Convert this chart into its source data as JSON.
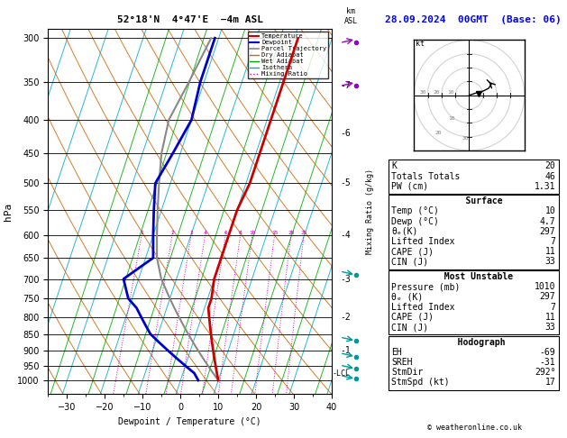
{
  "title_left": "52°18'N  4°47'E  −4m ASL",
  "title_right": "28.09.2024  00GMT  (Base: 06)",
  "xlabel": "Dewpoint / Temperature (°C)",
  "ylabel_left": "hPa",
  "bg_color": "#ffffff",
  "temp_profile": {
    "pressure": [
      1000,
      975,
      950,
      925,
      900,
      875,
      850,
      825,
      800,
      775,
      750,
      700,
      650,
      600,
      550,
      500,
      450,
      400,
      350,
      300
    ],
    "temp": [
      10,
      9,
      8,
      7,
      6,
      5,
      4,
      3,
      2,
      1,
      1,
      0,
      0,
      0,
      0,
      1,
      1,
      1,
      1,
      1
    ]
  },
  "dewp_profile": {
    "pressure": [
      1000,
      975,
      950,
      925,
      900,
      875,
      850,
      825,
      800,
      775,
      750,
      700,
      650,
      600,
      550,
      500,
      450,
      400,
      350,
      300
    ],
    "dewp": [
      4.7,
      3,
      0,
      -3,
      -6,
      -9,
      -12,
      -14,
      -16,
      -18,
      -21,
      -24,
      -18,
      -20,
      -22,
      -24,
      -22,
      -20,
      -21,
      -21
    ]
  },
  "parcel_profile": {
    "pressure": [
      1000,
      975,
      950,
      925,
      900,
      875,
      850,
      825,
      800,
      775,
      750,
      700,
      650,
      600,
      550,
      500,
      450,
      400,
      350,
      300
    ],
    "temp": [
      10,
      8,
      6,
      4,
      2,
      0,
      -2,
      -4,
      -6,
      -8,
      -10,
      -14,
      -17,
      -19,
      -21,
      -23,
      -25,
      -26,
      -24,
      -22
    ]
  },
  "temp_color": "#cc0000",
  "dewp_color": "#0000cc",
  "parcel_color": "#888888",
  "dry_adiabat_color": "#cc6600",
  "wet_adiabat_color": "#00aa00",
  "isotherm_color": "#00aacc",
  "mixing_ratio_color": "#cc00cc",
  "xlim": [
    -35,
    40
  ],
  "press_ticks": [
    300,
    350,
    400,
    450,
    500,
    550,
    600,
    650,
    700,
    750,
    800,
    850,
    900,
    950,
    1000
  ],
  "SKEW": 25.0,
  "mixing_ratio_levels": [
    1,
    2,
    3,
    4,
    6,
    8,
    10,
    15,
    20,
    25
  ],
  "km_ticks": [
    1,
    2,
    3,
    4,
    5,
    6,
    7
  ],
  "km_pressures": [
    900,
    800,
    700,
    600,
    500,
    420,
    355
  ],
  "lcl_pressure": 978,
  "info_box": {
    "K": 20,
    "Totals_Totals": 46,
    "PW_cm": 1.31,
    "Surface_Temp": 10,
    "Surface_Dewp": 4.7,
    "Surface_thetae": 297,
    "Surface_LI": 7,
    "Surface_CAPE": 11,
    "Surface_CIN": 33,
    "MU_Pressure": 1010,
    "MU_thetae": 297,
    "MU_LI": 7,
    "MU_CAPE": 11,
    "MU_CIN": 33,
    "Hodo_EH": -69,
    "Hodo_SREH": -31,
    "Hodo_StmDir": 292,
    "Hodo_StmSpd": 17
  },
  "wind_barbs_purple": [
    {
      "pressure": 305,
      "spd": 25,
      "dir": 230
    },
    {
      "pressure": 355,
      "spd": 20,
      "dir": 235
    }
  ],
  "wind_barbs_teal": [
    {
      "pressure": 690,
      "spd": 10,
      "dir": 250
    },
    {
      "pressure": 870,
      "spd": 8,
      "dir": 240
    },
    {
      "pressure": 920,
      "spd": 8,
      "dir": 245
    },
    {
      "pressure": 960,
      "spd": 5,
      "dir": 255
    },
    {
      "pressure": 995,
      "spd": 10,
      "dir": 185
    }
  ]
}
